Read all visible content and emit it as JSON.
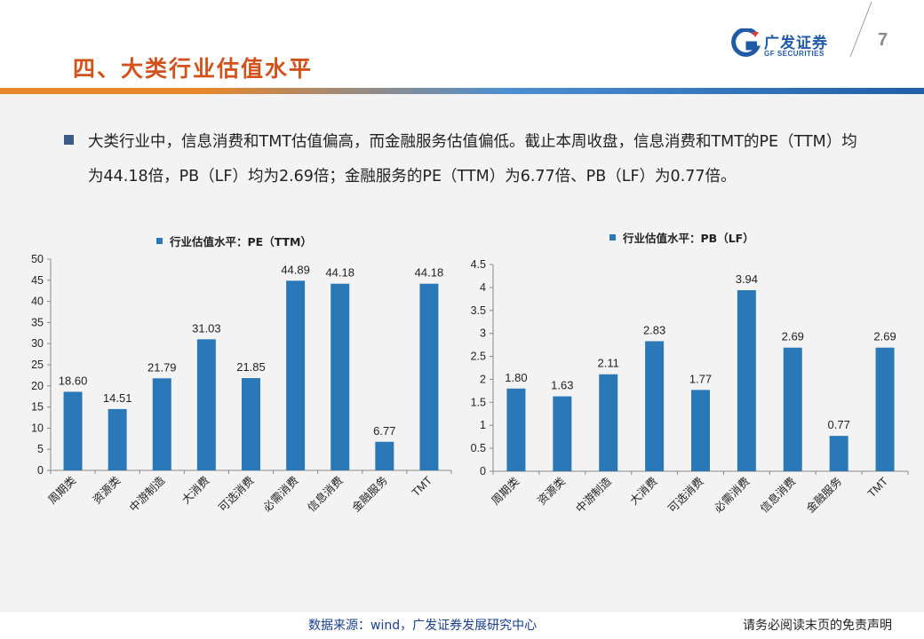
{
  "header": {
    "title": "四、大类行业估值水平",
    "logo_cn": "广发证券",
    "logo_en": "GF SECURITIES",
    "page_number": "7"
  },
  "bullet": {
    "text": "大类行业中，信息消费和TMT估值偏高，而金融服务估值偏低。截止本周收盘，信息消费和TMT的PE（TTM）均为44.18倍，PB（LF）均为2.69倍；金融服务的PE（TTM）为6.77倍、PB（LF）为0.77倍。"
  },
  "chart_data": [
    {
      "type": "bar",
      "title": "行业估值水平：PE（TTM）",
      "categories": [
        "周期类",
        "资源类",
        "中游制造",
        "大消费",
        "可选消费",
        "必需消费",
        "信息消费",
        "金融服务",
        "TMT"
      ],
      "values": [
        18.6,
        14.51,
        21.79,
        31.03,
        21.85,
        44.89,
        44.18,
        6.77,
        44.18
      ],
      "value_labels": [
        "18.60",
        "14.51",
        "21.79",
        "31.03",
        "21.85",
        "44.89",
        "44.18",
        "6.77",
        "44.18"
      ],
      "ylim": [
        0,
        50
      ],
      "yticks": [
        "0",
        "5",
        "10",
        "15",
        "20",
        "25",
        "30",
        "35",
        "40",
        "45",
        "50"
      ],
      "ytick_values": [
        0,
        5,
        10,
        15,
        20,
        25,
        30,
        35,
        40,
        45,
        50
      ],
      "legend": "行业估值水平：PE（TTM）",
      "color": "#2b78b8"
    },
    {
      "type": "bar",
      "title": "行业估值水平：PB（LF）",
      "categories": [
        "周期类",
        "资源类",
        "中游制造",
        "大消费",
        "可选消费",
        "必需消费",
        "信息消费",
        "金融服务",
        "TMT"
      ],
      "values": [
        1.8,
        1.63,
        2.11,
        2.83,
        1.77,
        3.94,
        2.69,
        0.77,
        2.69
      ],
      "value_labels": [
        "1.80",
        "1.63",
        "2.11",
        "2.83",
        "1.77",
        "3.94",
        "2.69",
        "0.77",
        "2.69"
      ],
      "ylim": [
        0,
        4.5
      ],
      "yticks": [
        "0",
        "0.5",
        "1",
        "1.5",
        "2",
        "2.5",
        "3",
        "3.5",
        "4",
        "4.5"
      ],
      "ytick_values": [
        0,
        0.5,
        1,
        1.5,
        2,
        2.5,
        3,
        3.5,
        4,
        4.5
      ],
      "legend": "行业估值水平：PB（LF）",
      "color": "#2b78b8"
    }
  ],
  "footer": {
    "source": "数据来源：wind，广发证券发展研究中心",
    "disclaimer": "请务必阅读末页的免责声明"
  }
}
